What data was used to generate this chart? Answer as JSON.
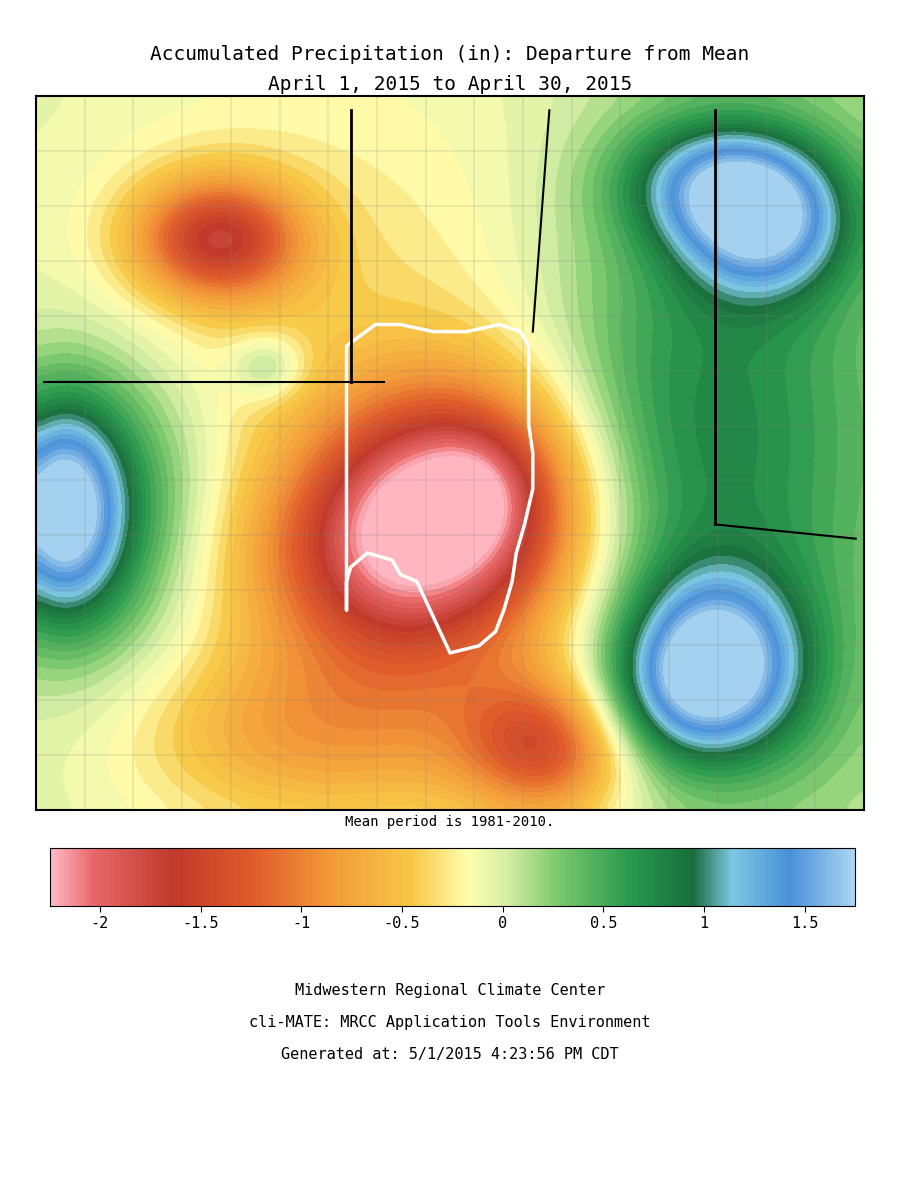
{
  "title_line1": "Accumulated Precipitation (in): Departure from Mean",
  "title_line2": "April 1, 2015 to April 30, 2015",
  "subtitle": "Mean period is 1981-2010.",
  "footer_line1": "Midwestern Regional Climate Center",
  "footer_line2": "cli-MATE: MRCC Application Tools Environment",
  "footer_line3": "Generated at: 5/1/2015 4:23:56 PM CDT",
  "colorbar_ticks": [
    -2,
    -1.5,
    -1,
    -0.5,
    0,
    0.5,
    1,
    1.5
  ],
  "colorbar_colors": [
    "#ffb6c1",
    "#e8696b",
    "#c0392b",
    "#e05c2b",
    "#f39c3a",
    "#f7c948",
    "#ffffb0",
    "#d4eda4",
    "#7dc96e",
    "#2a9a4e",
    "#1a6e3d",
    "#7ec8e3",
    "#4a90d9",
    "#a8d4f0"
  ],
  "vmin": -2.25,
  "vmax": 1.75,
  "background_color": "#ffffff",
  "map_background": "#f0f0f0",
  "title_fontsize": 14,
  "footer_fontsize": 11,
  "colorbar_fontsize": 11
}
